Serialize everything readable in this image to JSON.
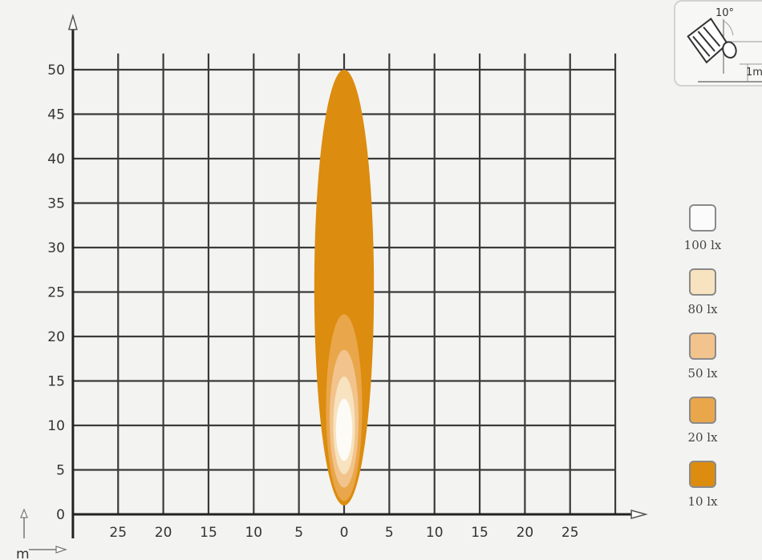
{
  "chart_data": {
    "type": "isolux-diagram",
    "x_ticks": [
      25,
      20,
      15,
      10,
      5,
      0,
      5,
      10,
      15,
      20,
      25
    ],
    "y_ticks": [
      0,
      5,
      10,
      15,
      20,
      25,
      30,
      35,
      40,
      45,
      50
    ],
    "xlim": [
      -30,
      30
    ],
    "ylim": [
      0,
      52
    ],
    "unit_label": "m",
    "grid": true,
    "zones": [
      {
        "lux": "10 lx",
        "color": "#dc8c0e",
        "y_min": 1,
        "y_max": 50,
        "half_width": 3.3
      },
      {
        "lux": "20 lx",
        "color": "#e9a64a",
        "y_min": 1.5,
        "y_max": 22.5,
        "half_width": 2.0
      },
      {
        "lux": "50 lx",
        "color": "#f2c38c",
        "y_min": 3,
        "y_max": 18.5,
        "half_width": 1.6
      },
      {
        "lux": "80 lx",
        "color": "#f7e3bf",
        "y_min": 4.5,
        "y_max": 15.5,
        "half_width": 1.2
      },
      {
        "lux": "100 lx",
        "color": "#fdfbf6",
        "y_min": 6,
        "y_max": 13,
        "half_width": 0.9
      }
    ]
  },
  "legend": [
    {
      "label": "100 lx",
      "color": "#fbfbfb"
    },
    {
      "label": "80 lx",
      "color": "#f7e3bf"
    },
    {
      "label": "50 lx",
      "color": "#f2c38c"
    },
    {
      "label": "20 lx",
      "color": "#e9a64a"
    },
    {
      "label": "10 lx",
      "color": "#dc8c0e"
    }
  ],
  "mount": {
    "angle_label": "10°",
    "height_label": "1m",
    "icon": "work-lamp-mounting-icon"
  }
}
